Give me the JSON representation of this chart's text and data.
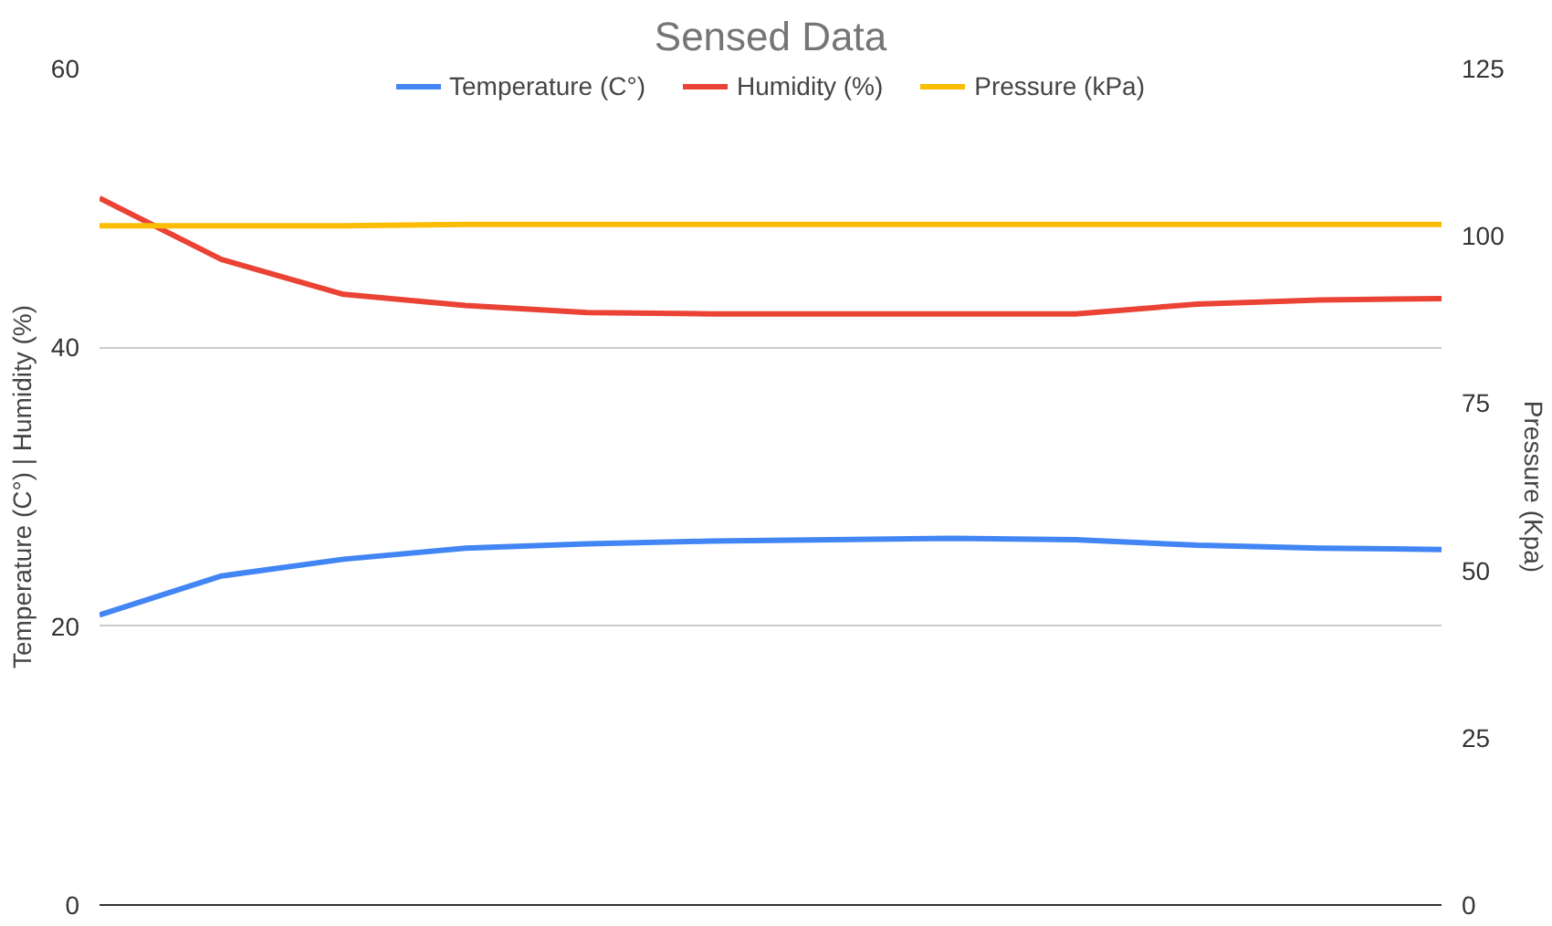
{
  "chart_data": {
    "type": "line",
    "title": "Sensed Data",
    "ylabel": "Temperature (C°) | Humidity (%)",
    "y2label": "Pressure (Kpa)",
    "categories": [
      null,
      null,
      null,
      null,
      null,
      null,
      null,
      null,
      null,
      null,
      null,
      null
    ],
    "series": [
      {
        "name": "Temperature (C°)",
        "color": "#4285f4",
        "values": [
          20.8,
          23.6,
          24.8,
          25.6,
          25.9,
          26.1,
          26.2,
          26.3,
          26.2,
          25.8,
          25.6,
          25.5
        ]
      },
      {
        "name": "Humidity (%)",
        "color": "#ea4335",
        "values": [
          50.7,
          46.3,
          43.8,
          43.0,
          42.5,
          42.4,
          42.4,
          42.4,
          42.4,
          43.1,
          43.4,
          43.5
        ]
      },
      {
        "name": "Pressure (kPa)",
        "color": "#fbbc04",
        "axis": "y2",
        "values": [
          101.5,
          101.5,
          101.5,
          101.7,
          101.7,
          101.7,
          101.7,
          101.7,
          101.7,
          101.7,
          101.7,
          101.7
        ]
      }
    ],
    "ylim": [
      0,
      60
    ],
    "yticks": [
      0,
      20,
      40,
      60
    ],
    "y2lim": [
      0,
      125
    ],
    "y2ticks": [
      0,
      25,
      50,
      75,
      100,
      125
    ],
    "grid": "y",
    "legend": "top",
    "tick_labels": "y",
    "marker": "none",
    "line_style": "solid"
  }
}
